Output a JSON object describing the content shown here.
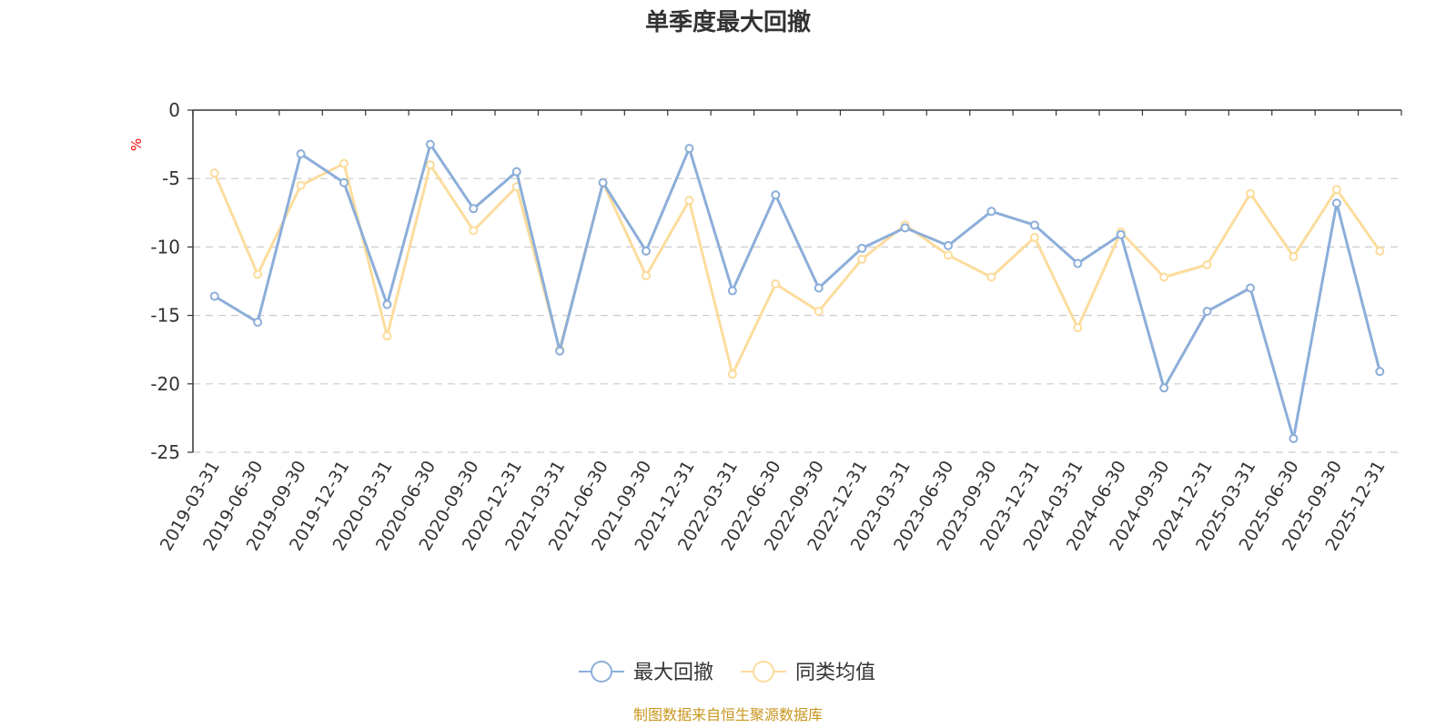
{
  "chart_data": {
    "type": "line",
    "title": "单季度最大回撤",
    "ylabel": "%",
    "xlabel": "",
    "ylim": [
      -25,
      0
    ],
    "yticks": [
      0,
      -5,
      -10,
      -15,
      -20,
      -25
    ],
    "ytick_labels": [
      "0",
      "-5",
      "-10",
      "-15",
      "-20",
      "-25"
    ],
    "grid": "horizontal dashed",
    "legend_position": "bottom-center",
    "categories": [
      "2019-03-31",
      "2019-06-30",
      "2019-09-30",
      "2019-12-31",
      "2020-03-31",
      "2020-06-30",
      "2020-09-30",
      "2020-12-31",
      "2021-03-31",
      "2021-06-30",
      "2021-09-30",
      "2021-12-31",
      "2022-03-31",
      "2022-06-30",
      "2022-09-30",
      "2022-12-31",
      "2023-03-31",
      "2023-06-30",
      "2023-09-30",
      "2023-12-31",
      "2024-03-31",
      "2024-06-30",
      "2024-09-30",
      "2024-12-31",
      "2025-03-31",
      "2025-06-30",
      "2025-09-30",
      "2025-12-31"
    ],
    "series": [
      {
        "name": "最大回撤",
        "color": "#8caed9",
        "values": [
          -13.6,
          -15.5,
          -3.2,
          -5.3,
          -14.2,
          -2.5,
          -7.2,
          -4.5,
          -17.6,
          -5.3,
          -10.3,
          -2.8,
          -13.2,
          -6.2,
          -13.0,
          -10.1,
          -8.6,
          -9.9,
          -7.4,
          -8.4,
          -11.2,
          -9.1,
          -20.3,
          -14.7,
          -13.0,
          -24.0,
          -6.8,
          -19.1
        ]
      },
      {
        "name": "同类均值",
        "color": "#fcdc9d",
        "values": [
          -4.6,
          -12.0,
          -5.5,
          -3.9,
          -16.5,
          -4.0,
          -8.8,
          -5.6,
          -17.5,
          -5.3,
          -12.1,
          -6.6,
          -19.3,
          -12.7,
          -14.7,
          -10.9,
          -8.4,
          -10.6,
          -12.2,
          -9.3,
          -15.9,
          -8.9,
          -12.2,
          -11.3,
          -6.1,
          -10.7,
          -5.8,
          -10.3
        ]
      }
    ],
    "source": "制图数据来自恒生聚源数据库"
  },
  "colors": {
    "axis": "#333333",
    "grid": "#cccccc",
    "unit_label": "#ff0000",
    "source_text": "#c8961e"
  }
}
